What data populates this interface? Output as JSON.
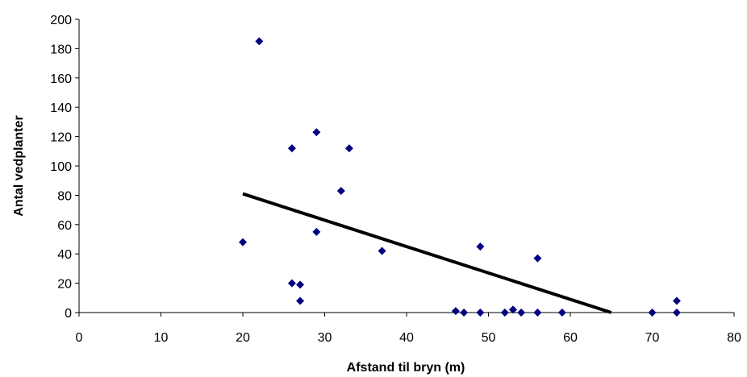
{
  "chart_data": {
    "type": "scatter",
    "xlabel": "Afstand til bryn (m)",
    "ylabel": "Antal vedplanter",
    "xlim": [
      0,
      80
    ],
    "ylim": [
      0,
      200
    ],
    "x_ticks": [
      0,
      10,
      20,
      30,
      40,
      50,
      60,
      70,
      80
    ],
    "y_ticks": [
      0,
      20,
      40,
      60,
      80,
      100,
      120,
      140,
      160,
      180,
      200
    ],
    "grid": false,
    "legend": "none",
    "marker_color": "#000080",
    "line_color": "#000000",
    "series": [
      {
        "points": [
          {
            "x": 20,
            "y": 48
          },
          {
            "x": 22,
            "y": 185
          },
          {
            "x": 26,
            "y": 112
          },
          {
            "x": 26,
            "y": 20
          },
          {
            "x": 27,
            "y": 19
          },
          {
            "x": 27,
            "y": 8
          },
          {
            "x": 29,
            "y": 123
          },
          {
            "x": 29,
            "y": 55
          },
          {
            "x": 32,
            "y": 83
          },
          {
            "x": 33,
            "y": 112
          },
          {
            "x": 37,
            "y": 42
          },
          {
            "x": 46,
            "y": 1
          },
          {
            "x": 47,
            "y": 0
          },
          {
            "x": 49,
            "y": 45
          },
          {
            "x": 49,
            "y": 0
          },
          {
            "x": 52,
            "y": 0
          },
          {
            "x": 53,
            "y": 2
          },
          {
            "x": 54,
            "y": 0
          },
          {
            "x": 56,
            "y": 37
          },
          {
            "x": 56,
            "y": 0
          },
          {
            "x": 59,
            "y": 0
          },
          {
            "x": 70,
            "y": 0
          },
          {
            "x": 73,
            "y": 8
          },
          {
            "x": 73,
            "y": 0
          }
        ]
      }
    ],
    "trendline": {
      "x": [
        20,
        65
      ],
      "y": [
        81,
        0
      ]
    }
  }
}
